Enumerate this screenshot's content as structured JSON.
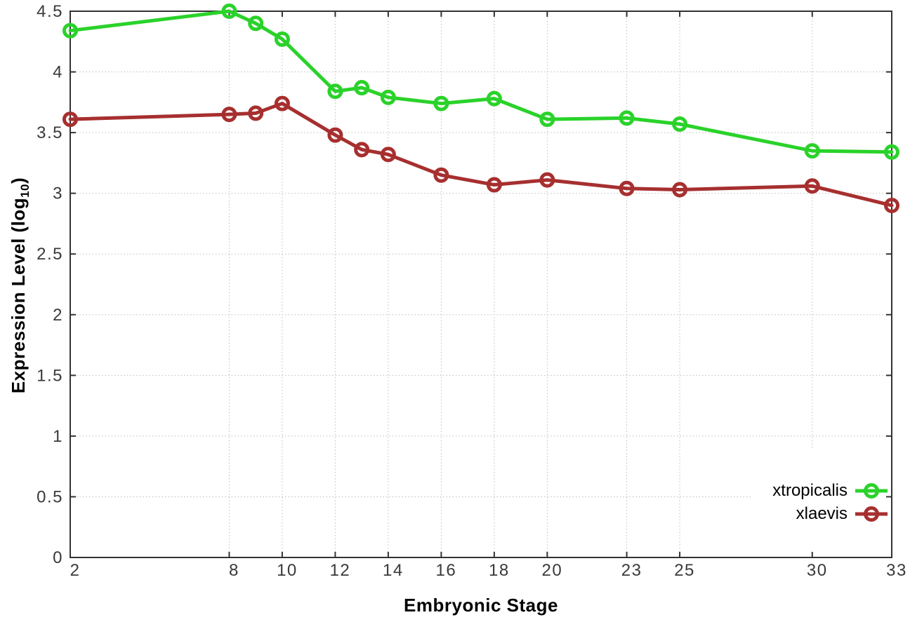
{
  "chart_data": {
    "type": "line",
    "title": "",
    "xlabel": "Embryonic Stage",
    "ylabel": "Expression Level (log10)",
    "ylabel_parts": {
      "main": "Expression Level (log",
      "sub": "10",
      "close": ")"
    },
    "xlim": [
      2,
      33
    ],
    "ylim": [
      0,
      4.5
    ],
    "x_ticks": [
      2,
      8,
      10,
      12,
      14,
      16,
      18,
      20,
      23,
      25,
      30,
      33
    ],
    "y_ticks": [
      0,
      0.5,
      1,
      1.5,
      2,
      2.5,
      3,
      3.5,
      4,
      4.5
    ],
    "grid": true,
    "legend_position": "bottom-right-inside",
    "x": [
      2,
      8,
      9,
      10,
      12,
      13,
      14,
      16,
      18,
      20,
      23,
      25,
      30,
      33
    ],
    "series": [
      {
        "name": "xtropicalis",
        "color": "#2ad22a",
        "marker": "open-circle",
        "values": [
          4.34,
          4.5,
          4.4,
          4.27,
          3.84,
          3.87,
          3.79,
          3.74,
          3.78,
          3.61,
          3.62,
          3.57,
          3.35,
          3.34
        ]
      },
      {
        "name": "xlaevis",
        "color": "#a72f2f",
        "marker": "open-circle",
        "values": [
          3.61,
          3.65,
          3.66,
          3.74,
          3.48,
          3.36,
          3.32,
          3.15,
          3.07,
          3.11,
          3.04,
          3.03,
          3.06,
          2.9
        ]
      }
    ],
    "colors": {
      "grid": "#bdbdbd",
      "axis": "#333333",
      "tick_text": "#3a3a3a",
      "background": "#ffffff"
    }
  }
}
